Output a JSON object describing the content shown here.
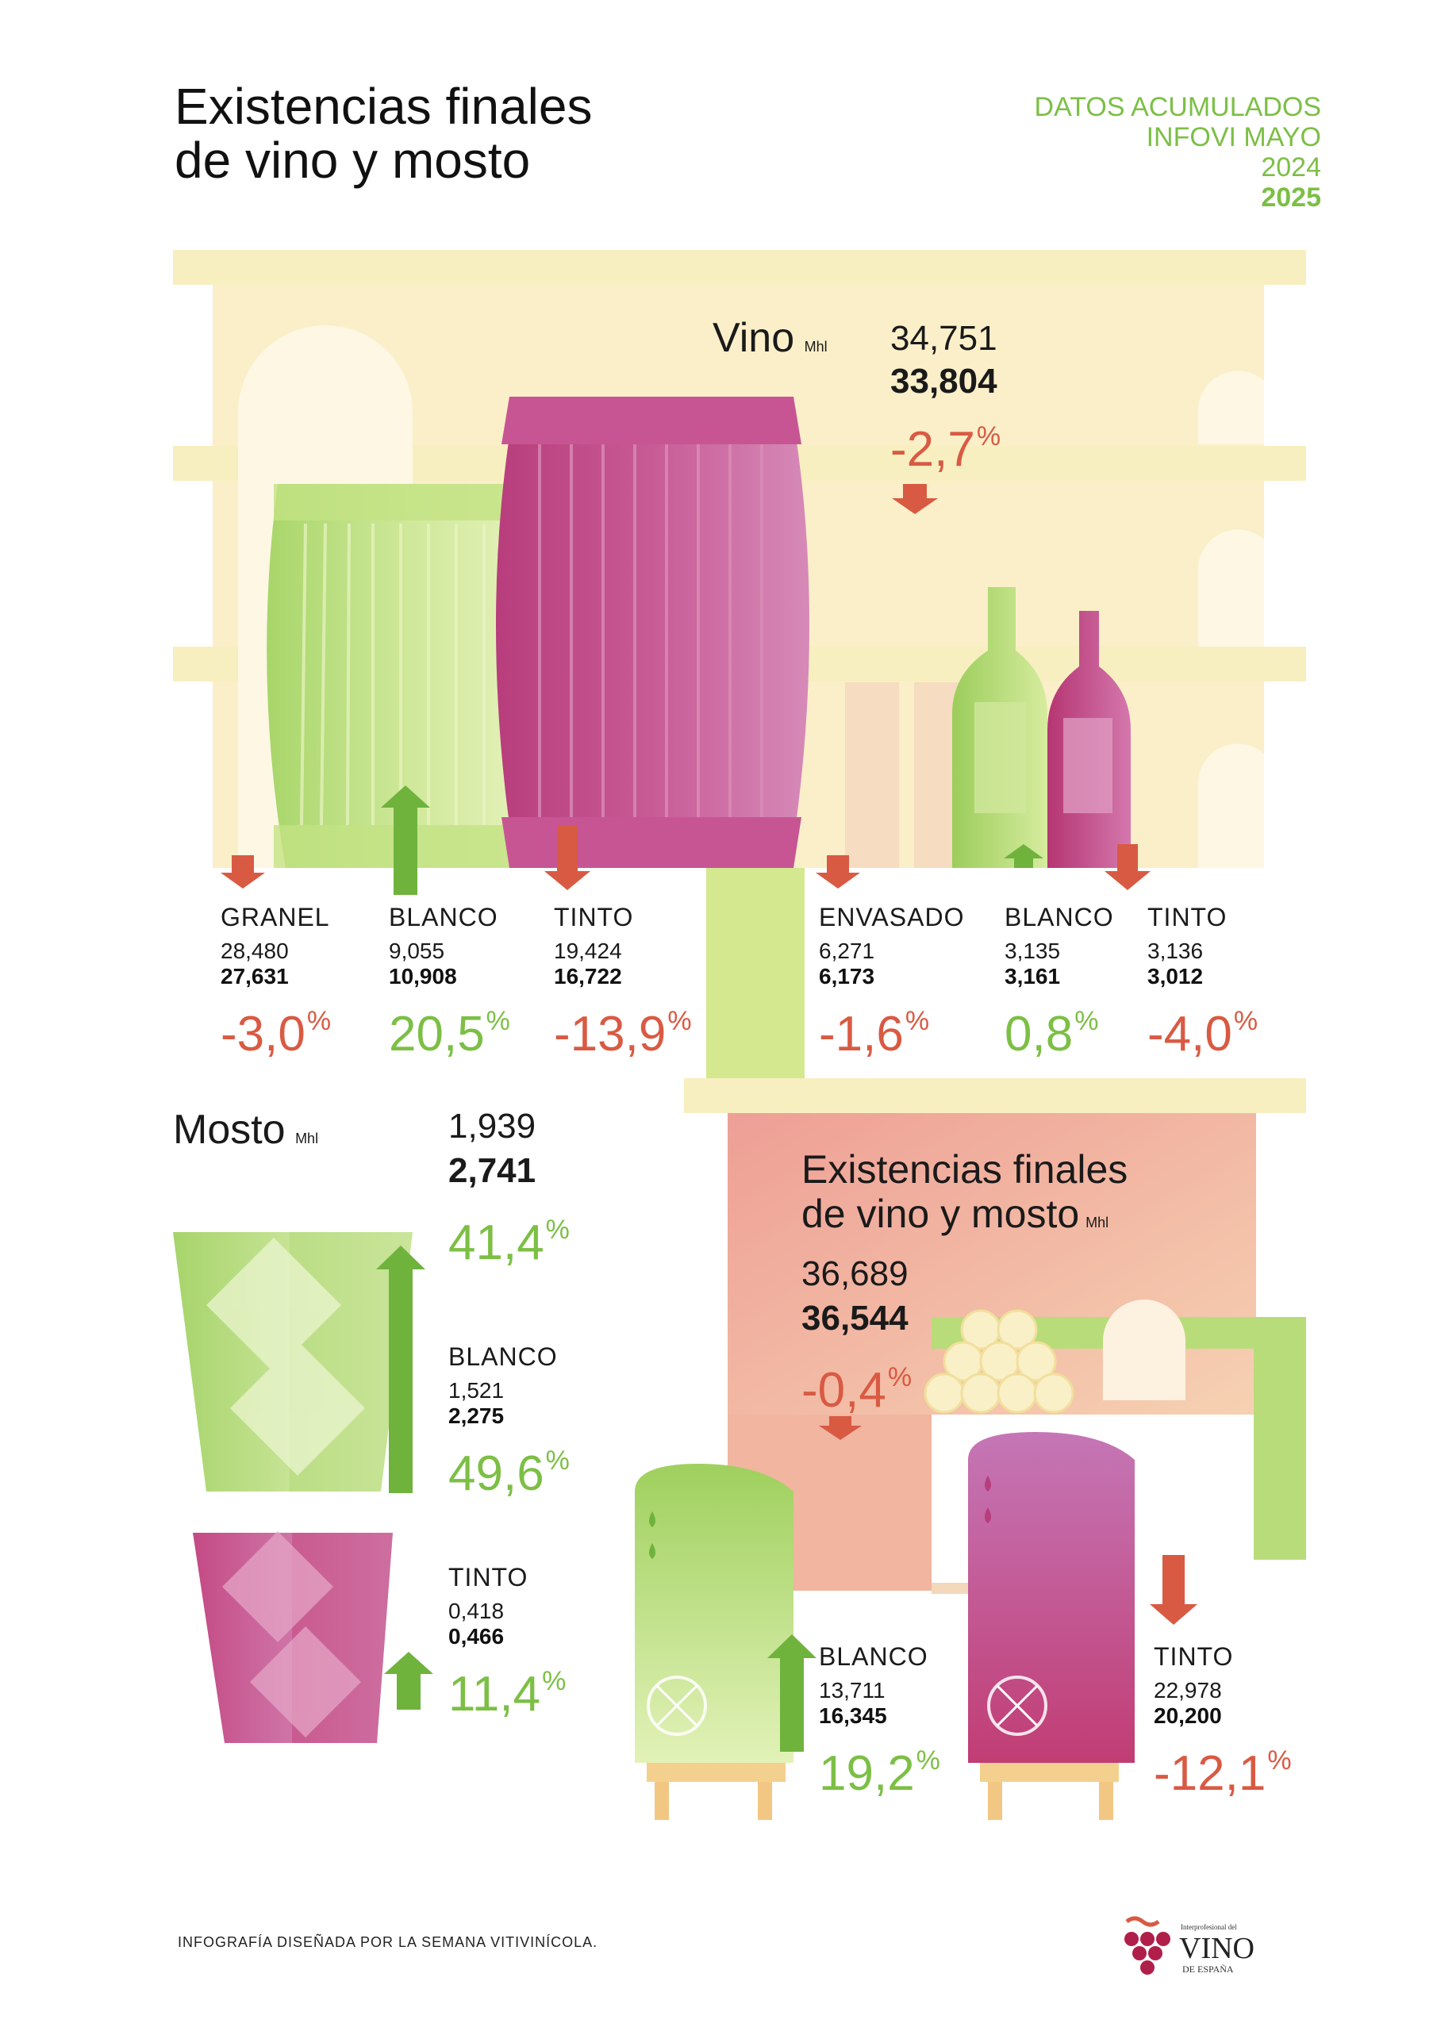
{
  "title": {
    "line1": "Existencias finales",
    "line2": "de vino y mosto"
  },
  "period": {
    "line1": "DATOS ACUMULADOS",
    "line2": "INFOVI MAYO",
    "prev_year": "2024",
    "cur_year": "2025"
  },
  "colors": {
    "green": "#7cbf45",
    "red": "#d95a43",
    "wine": "#b8457a",
    "cream": "#faf1c8",
    "salmon": "#efb6a0"
  },
  "vino": {
    "label": "Vino",
    "unit": "Mhl",
    "prev": "34,751",
    "cur": "33,804",
    "pct": "-2,7",
    "pct_sign": "%",
    "trend": "down",
    "granel": {
      "label": "GRANEL",
      "prev": "28,480",
      "cur": "27,631",
      "pct": "-3,0",
      "trend": "down"
    },
    "granel_blanco": {
      "label": "BLANCO",
      "prev": "9,055",
      "cur": "10,908",
      "pct": "20,5",
      "trend": "up"
    },
    "granel_tinto": {
      "label": "TINTO",
      "prev": "19,424",
      "cur": "16,722",
      "pct": "-13,9",
      "trend": "down"
    },
    "envasado": {
      "label": "ENVASADO",
      "prev": "6,271",
      "cur": "6,173",
      "pct": "-1,6",
      "trend": "down"
    },
    "envasado_blanco": {
      "label": "BLANCO",
      "prev": "3,135",
      "cur": "3,161",
      "pct": "0,8",
      "trend": "up"
    },
    "envasado_tinto": {
      "label": "TINTO",
      "prev": "3,136",
      "cur": "3,012",
      "pct": "-4,0",
      "trend": "down"
    }
  },
  "mosto": {
    "label": "Mosto",
    "unit": "Mhl",
    "prev": "1,939",
    "cur": "2,741",
    "pct": "41,4",
    "trend": "up",
    "blanco": {
      "label": "BLANCO",
      "prev": "1,521",
      "cur": "2,275",
      "pct": "49,6",
      "trend": "up"
    },
    "tinto": {
      "label": "TINTO",
      "prev": "0,418",
      "cur": "0,466",
      "pct": "11,4",
      "trend": "up"
    }
  },
  "total": {
    "line1": "Existencias finales",
    "line2": "de vino y mosto",
    "unit": "Mhl",
    "prev": "36,689",
    "cur": "36,544",
    "pct": "-0,4",
    "trend": "down",
    "blanco": {
      "label": "BLANCO",
      "prev": "13,711",
      "cur": "16,345",
      "pct": "19,2",
      "trend": "up"
    },
    "tinto": {
      "label": "TINTO",
      "prev": "22,978",
      "cur": "20,200",
      "pct": "-12,1",
      "trend": "down"
    }
  },
  "footer": "INFOGRAFÍA DISEÑADA POR LA SEMANA VITIVINÍCOLA.",
  "logo": {
    "small": "Interprofesional del",
    "big": "VINO",
    "sub": "DE ESPAÑA"
  }
}
